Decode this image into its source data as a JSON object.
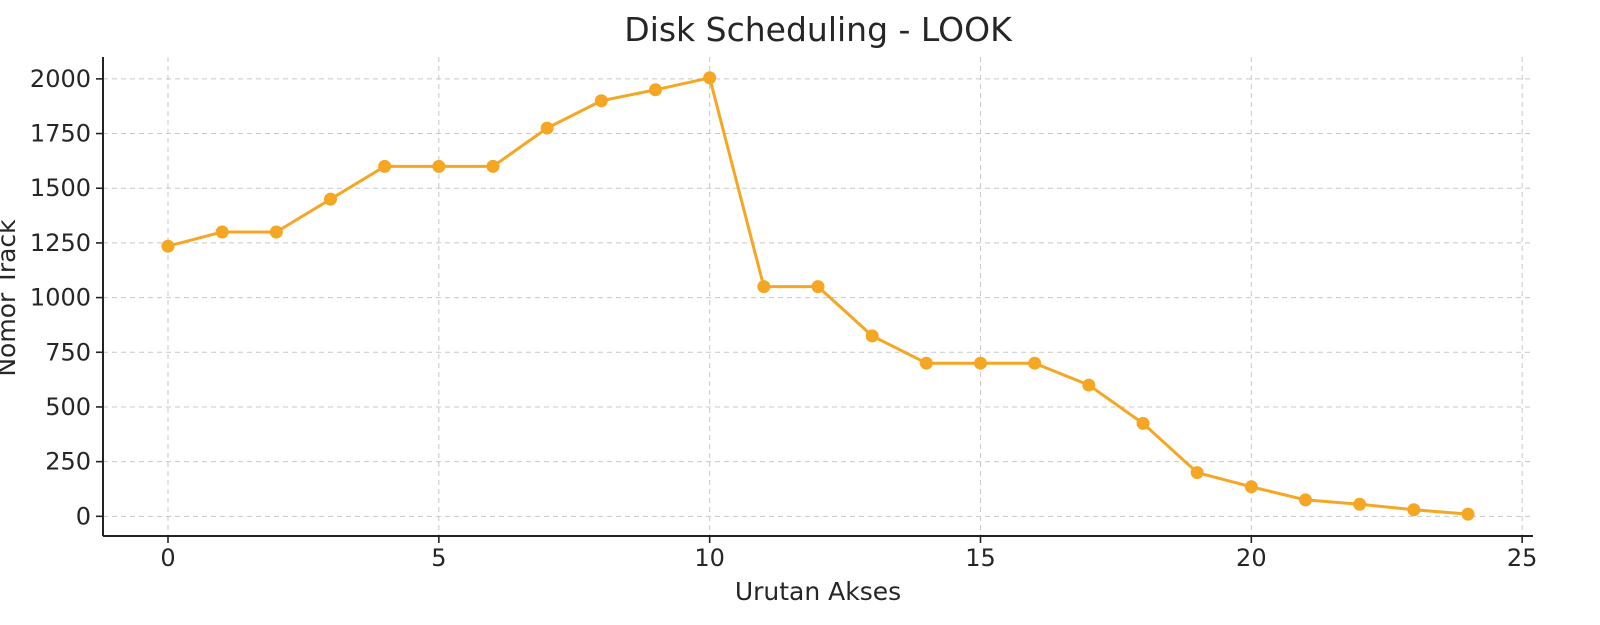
{
  "chart_data": {
    "type": "line",
    "title": "Disk Scheduling - LOOK",
    "xlabel": "Urutan Akses",
    "ylabel": "Nomor Track",
    "x": [
      0,
      1,
      2,
      3,
      4,
      5,
      6,
      7,
      8,
      9,
      10,
      11,
      12,
      13,
      14,
      15,
      16,
      17,
      18,
      19,
      20,
      21,
      22,
      23,
      24
    ],
    "series": [
      {
        "name": "",
        "color": "#f5a623",
        "values": [
          1235,
          1300,
          1300,
          1450,
          1600,
          1600,
          1600,
          1775,
          1900,
          1950,
          2005,
          1050,
          1050,
          825,
          700,
          700,
          700,
          600,
          425,
          200,
          135,
          75,
          55,
          30,
          10
        ]
      }
    ],
    "xlim": [
      -1.2,
      25.2
    ],
    "ylim": [
      -90,
      2100
    ],
    "xticks": [
      0,
      5,
      10,
      15,
      20,
      25
    ],
    "yticks": [
      0,
      250,
      500,
      750,
      1000,
      1250,
      1500,
      1750,
      2000
    ],
    "grid": true
  }
}
